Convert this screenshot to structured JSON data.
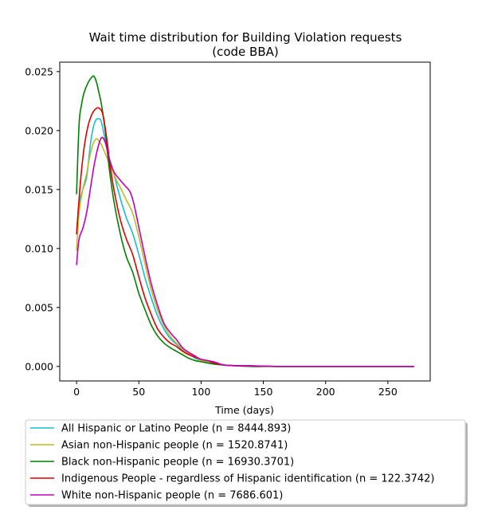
{
  "chart_data": {
    "type": "line",
    "title": "Wait time distribution  for Building Violation  requests",
    "subtitle": "(code BBA)",
    "xlabel": "Time (days)",
    "ylabel": "",
    "xlim": [
      -13.5,
      284
    ],
    "ylim": [
      -0.00123,
      0.0258
    ],
    "xticks": [
      "0",
      "50",
      "100",
      "150",
      "200",
      "250"
    ],
    "xtick_values": [
      0,
      50,
      100,
      150,
      200,
      250
    ],
    "yticks": [
      "0.000",
      "0.005",
      "0.010",
      "0.015",
      "0.020",
      "0.025"
    ],
    "ytick_values": [
      0.0,
      0.005,
      0.01,
      0.015,
      0.02,
      0.025
    ],
    "grid": false,
    "legend_position": "below-plot",
    "series": [
      {
        "name": "All Hispanic or Latino People (n = 8444.893)",
        "color": "#17becf",
        "points": [
          [
            0,
            0.0113
          ],
          [
            2,
            0.0138
          ],
          [
            5,
            0.015
          ],
          [
            8,
            0.016
          ],
          [
            10,
            0.0178
          ],
          [
            12,
            0.0195
          ],
          [
            15,
            0.0208
          ],
          [
            18,
            0.021
          ],
          [
            20,
            0.0207
          ],
          [
            23,
            0.0192
          ],
          [
            26,
            0.0178
          ],
          [
            30,
            0.0163
          ],
          [
            35,
            0.0143
          ],
          [
            40,
            0.0126
          ],
          [
            45,
            0.0113
          ],
          [
            50,
            0.0095
          ],
          [
            55,
            0.0075
          ],
          [
            60,
            0.0058
          ],
          [
            65,
            0.0043
          ],
          [
            70,
            0.0032
          ],
          [
            75,
            0.0024
          ],
          [
            80,
            0.0019
          ],
          [
            85,
            0.0014
          ],
          [
            90,
            0.0011
          ],
          [
            95,
            0.0007
          ],
          [
            100,
            0.0005
          ],
          [
            110,
            0.0003
          ],
          [
            120,
            0.0001
          ],
          [
            140,
            5e-05
          ],
          [
            160,
            0.0
          ],
          [
            200,
            0.0
          ],
          [
            250,
            0.0
          ],
          [
            271,
            0.0
          ]
        ]
      },
      {
        "name": "Asian non-Hispanic people (n = 1520.8741)",
        "color": "#bcbd22",
        "points": [
          [
            0,
            0.0098
          ],
          [
            2,
            0.013
          ],
          [
            5,
            0.015
          ],
          [
            8,
            0.0163
          ],
          [
            10,
            0.0175
          ],
          [
            13,
            0.0188
          ],
          [
            16,
            0.0193
          ],
          [
            18,
            0.0191
          ],
          [
            20,
            0.0188
          ],
          [
            24,
            0.0178
          ],
          [
            28,
            0.0168
          ],
          [
            32,
            0.0158
          ],
          [
            36,
            0.015
          ],
          [
            40,
            0.0141
          ],
          [
            45,
            0.013
          ],
          [
            50,
            0.011
          ],
          [
            55,
            0.0087
          ],
          [
            60,
            0.0065
          ],
          [
            65,
            0.0048
          ],
          [
            70,
            0.0035
          ],
          [
            75,
            0.0026
          ],
          [
            80,
            0.002
          ],
          [
            85,
            0.0015
          ],
          [
            90,
            0.0011
          ],
          [
            95,
            0.0008
          ],
          [
            100,
            0.0005
          ],
          [
            110,
            0.0003
          ],
          [
            120,
            0.0001
          ],
          [
            140,
            5e-05
          ],
          [
            160,
            0.0
          ],
          [
            200,
            0.0
          ],
          [
            250,
            0.0
          ],
          [
            271,
            0.0
          ]
        ]
      },
      {
        "name": "Black non-Hispanic people (n = 16930.3701)",
        "color": "#008000",
        "points": [
          [
            0,
            0.0146
          ],
          [
            2,
            0.0205
          ],
          [
            4,
            0.0222
          ],
          [
            6,
            0.0232
          ],
          [
            9,
            0.024
          ],
          [
            12,
            0.0245
          ],
          [
            14,
            0.0246
          ],
          [
            16,
            0.0241
          ],
          [
            18,
            0.0232
          ],
          [
            20,
            0.0222
          ],
          [
            23,
            0.02
          ],
          [
            26,
            0.017
          ],
          [
            30,
            0.014
          ],
          [
            35,
            0.0113
          ],
          [
            40,
            0.0093
          ],
          [
            45,
            0.008
          ],
          [
            50,
            0.0062
          ],
          [
            55,
            0.0048
          ],
          [
            60,
            0.0035
          ],
          [
            65,
            0.0026
          ],
          [
            70,
            0.002
          ],
          [
            75,
            0.0016
          ],
          [
            80,
            0.0013
          ],
          [
            85,
            0.001
          ],
          [
            90,
            0.0007
          ],
          [
            95,
            0.0005
          ],
          [
            100,
            0.0004
          ],
          [
            110,
            0.0002
          ],
          [
            120,
            0.0001
          ],
          [
            140,
            0.0
          ],
          [
            160,
            0.0
          ],
          [
            200,
            0.0
          ],
          [
            250,
            0.0
          ],
          [
            271,
            0.0
          ]
        ]
      },
      {
        "name": "Indigenous People - regardless of Hispanic identification (n = 122.3742)",
        "color": "#e00000",
        "points": [
          [
            0,
            0.0112
          ],
          [
            3,
            0.0155
          ],
          [
            6,
            0.0185
          ],
          [
            9,
            0.0203
          ],
          [
            12,
            0.0213
          ],
          [
            15,
            0.0218
          ],
          [
            18,
            0.0219
          ],
          [
            21,
            0.0214
          ],
          [
            24,
            0.0195
          ],
          [
            27,
            0.017
          ],
          [
            30,
            0.015
          ],
          [
            35,
            0.0125
          ],
          [
            40,
            0.0108
          ],
          [
            45,
            0.0095
          ],
          [
            50,
            0.0076
          ],
          [
            55,
            0.0058
          ],
          [
            60,
            0.0044
          ],
          [
            65,
            0.0032
          ],
          [
            70,
            0.0025
          ],
          [
            75,
            0.002
          ],
          [
            80,
            0.0017
          ],
          [
            85,
            0.0013
          ],
          [
            90,
            0.001
          ],
          [
            95,
            0.0008
          ],
          [
            100,
            0.0006
          ],
          [
            105,
            0.0005
          ],
          [
            110,
            0.0003
          ],
          [
            120,
            0.0001
          ],
          [
            140,
            5e-05
          ],
          [
            160,
            0.0
          ],
          [
            200,
            0.0
          ],
          [
            250,
            0.0
          ],
          [
            271,
            0.0
          ]
        ]
      },
      {
        "name": "White non-Hispanic people (n = 7686.601)",
        "color": "#bf00bf",
        "points": [
          [
            0,
            0.0086
          ],
          [
            2,
            0.0108
          ],
          [
            5,
            0.0117
          ],
          [
            8,
            0.013
          ],
          [
            11,
            0.015
          ],
          [
            14,
            0.017
          ],
          [
            17,
            0.0185
          ],
          [
            20,
            0.0194
          ],
          [
            23,
            0.019
          ],
          [
            26,
            0.0177
          ],
          [
            30,
            0.0165
          ],
          [
            35,
            0.0158
          ],
          [
            40,
            0.0152
          ],
          [
            43,
            0.0148
          ],
          [
            46,
            0.0138
          ],
          [
            50,
            0.0118
          ],
          [
            55,
            0.0093
          ],
          [
            60,
            0.007
          ],
          [
            65,
            0.0052
          ],
          [
            70,
            0.0037
          ],
          [
            75,
            0.0029
          ],
          [
            80,
            0.0023
          ],
          [
            85,
            0.0016
          ],
          [
            90,
            0.0012
          ],
          [
            95,
            0.0009
          ],
          [
            100,
            0.0006
          ],
          [
            110,
            0.0004
          ],
          [
            120,
            0.0001
          ],
          [
            140,
            5e-05
          ],
          [
            160,
            0.0
          ],
          [
            200,
            0.0
          ],
          [
            250,
            0.0
          ],
          [
            271,
            0.0
          ]
        ]
      }
    ]
  }
}
